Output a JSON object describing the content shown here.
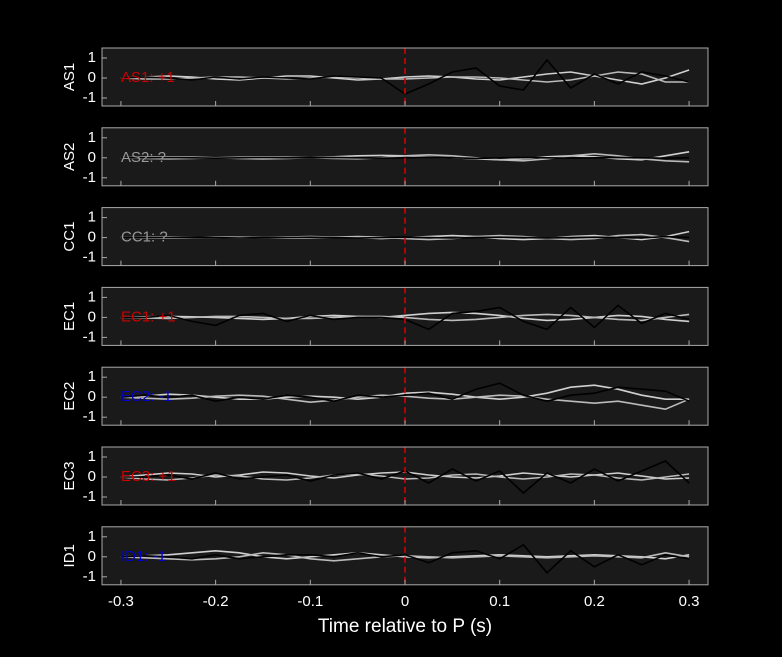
{
  "chart_data": [
    {
      "type": "line",
      "ylabel": "AS1",
      "annotation": "AS1: +1",
      "annotation_color": "#cc0000",
      "vline_x": 0,
      "vline_color": "#dd0000",
      "x": [
        -0.3,
        -0.275,
        -0.25,
        -0.225,
        -0.2,
        -0.175,
        -0.15,
        -0.125,
        -0.1,
        -0.075,
        -0.05,
        -0.025,
        0,
        0.025,
        0.05,
        0.075,
        0.1,
        0.125,
        0.15,
        0.175,
        0.2,
        0.225,
        0.25,
        0.275,
        0.3
      ],
      "series": [
        {
          "color": "#d0d0d0",
          "values": [
            0,
            0.05,
            0.1,
            0.05,
            -0.05,
            -0.1,
            0,
            0.1,
            0.1,
            0,
            -0.1,
            -0.05,
            0.05,
            0.1,
            0.05,
            -0.05,
            -0.1,
            0.05,
            0.2,
            0.3,
            0.1,
            -0.1,
            -0.3,
            0,
            0.4
          ]
        },
        {
          "color": "#bbbbbb",
          "values": [
            0,
            -0.05,
            -0.05,
            0,
            0.05,
            0.05,
            0,
            -0.05,
            0,
            0.05,
            0,
            -0.05,
            -0.05,
            0,
            0.05,
            0.05,
            0,
            -0.1,
            -0.2,
            -0.1,
            0.1,
            0.3,
            0.2,
            -0.2,
            -0.2
          ]
        },
        {
          "color": "#000000",
          "values": [
            0,
            0.05,
            0,
            -0.1,
            0.05,
            -0.05,
            0.05,
            0,
            -0.05,
            0.1,
            0.05,
            0,
            -0.8,
            -0.3,
            0.3,
            0.5,
            -0.4,
            -0.6,
            0.9,
            -0.5,
            0.2,
            -0.3,
            0.3,
            0.1,
            -0.2
          ]
        }
      ],
      "ylim": [
        -1.4,
        1.5
      ],
      "yticks": [
        -1,
        0,
        1
      ],
      "xlim": [
        -0.32,
        0.32
      ],
      "xticks": [
        -0.3,
        -0.2,
        -0.1,
        0,
        0.1,
        0.2,
        0.3
      ],
      "show_xtick_labels": false
    },
    {
      "type": "line",
      "ylabel": "AS2",
      "annotation": "AS2: ?",
      "annotation_color": "#999999",
      "vline_x": 0,
      "vline_color": "#dd0000",
      "x": [
        -0.3,
        -0.275,
        -0.25,
        -0.225,
        -0.2,
        -0.175,
        -0.15,
        -0.125,
        -0.1,
        -0.075,
        -0.05,
        -0.025,
        0,
        0.025,
        0.05,
        0.075,
        0.1,
        0.125,
        0.15,
        0.175,
        0.2,
        0.225,
        0.25,
        0.275,
        0.3
      ],
      "series": [
        {
          "color": "#d0d0d0",
          "values": [
            0,
            0.03,
            0.05,
            0.03,
            0,
            -0.03,
            -0.05,
            -0.03,
            0,
            0.05,
            0.1,
            0.12,
            0.1,
            0.05,
            0,
            -0.05,
            -0.1,
            -0.05,
            0.05,
            0.1,
            0.05,
            -0.05,
            -0.1,
            0.1,
            0.3
          ]
        },
        {
          "color": "#bbbbbb",
          "values": [
            0,
            -0.03,
            -0.05,
            -0.03,
            0,
            0.03,
            0.05,
            0.03,
            0,
            -0.03,
            -0.05,
            0,
            0.1,
            0.15,
            0.1,
            0,
            -0.1,
            -0.15,
            -0.05,
            0.1,
            0.2,
            0.1,
            -0.05,
            -0.15,
            -0.2
          ]
        },
        {
          "color": "#000000",
          "values": [
            0,
            0,
            0.02,
            0,
            -0.02,
            0,
            0.02,
            0,
            0,
            0.02,
            0,
            -0.02,
            0,
            0.03,
            0,
            -0.03,
            0,
            0.02,
            0,
            -0.02,
            0,
            0.02,
            0,
            -0.02,
            0
          ]
        }
      ],
      "ylim": [
        -1.4,
        1.5
      ],
      "yticks": [
        -1,
        0,
        1
      ],
      "xlim": [
        -0.32,
        0.32
      ],
      "xticks": [
        -0.3,
        -0.2,
        -0.1,
        0,
        0.1,
        0.2,
        0.3
      ],
      "show_xtick_labels": false
    },
    {
      "type": "line",
      "ylabel": "CC1",
      "annotation": "CC1: ?",
      "annotation_color": "#999999",
      "vline_x": 0,
      "vline_color": "#dd0000",
      "x": [
        -0.3,
        -0.275,
        -0.25,
        -0.225,
        -0.2,
        -0.175,
        -0.15,
        -0.125,
        -0.1,
        -0.075,
        -0.05,
        -0.025,
        0,
        0.025,
        0.05,
        0.075,
        0.1,
        0.125,
        0.15,
        0.175,
        0.2,
        0.225,
        0.25,
        0.275,
        0.3
      ],
      "series": [
        {
          "color": "#d0d0d0",
          "values": [
            0,
            0.02,
            0.03,
            0.02,
            0,
            -0.02,
            0,
            0.03,
            0.05,
            0.03,
            0,
            -0.05,
            0,
            0.05,
            0.1,
            0.05,
            -0.05,
            -0.1,
            -0.05,
            0.05,
            0.1,
            0,
            -0.1,
            0.05,
            0.3
          ]
        },
        {
          "color": "#bbbbbb",
          "values": [
            0,
            -0.02,
            -0.03,
            0,
            0.03,
            0.02,
            0,
            -0.03,
            -0.02,
            0.02,
            0.05,
            0.02,
            -0.05,
            -0.1,
            -0.05,
            0.05,
            0.1,
            0.05,
            -0.05,
            -0.1,
            -0.05,
            0.1,
            0.15,
            0,
            -0.2
          ]
        },
        {
          "color": "#000000",
          "values": [
            0,
            0,
            0,
            0.02,
            0,
            -0.02,
            0,
            0,
            0.02,
            0,
            -0.02,
            0,
            0.02,
            0,
            -0.02,
            0,
            0.02,
            0,
            -0.02,
            0,
            0.02,
            0,
            -0.02,
            0.05,
            0
          ]
        }
      ],
      "ylim": [
        -1.4,
        1.5
      ],
      "yticks": [
        -1,
        0,
        1
      ],
      "xlim": [
        -0.32,
        0.32
      ],
      "xticks": [
        -0.3,
        -0.2,
        -0.1,
        0,
        0.1,
        0.2,
        0.3
      ],
      "show_xtick_labels": false
    },
    {
      "type": "line",
      "ylabel": "EC1",
      "annotation": "EC1: +1",
      "annotation_color": "#cc0000",
      "vline_x": 0,
      "vline_color": "#dd0000",
      "x": [
        -0.3,
        -0.275,
        -0.25,
        -0.225,
        -0.2,
        -0.175,
        -0.15,
        -0.125,
        -0.1,
        -0.075,
        -0.05,
        -0.025,
        0,
        0.025,
        0.05,
        0.075,
        0.1,
        0.125,
        0.15,
        0.175,
        0.2,
        0.225,
        0.25,
        0.275,
        0.3
      ],
      "series": [
        {
          "color": "#d0d0d0",
          "values": [
            0,
            0.03,
            0.05,
            0.03,
            0,
            -0.05,
            -0.1,
            -0.05,
            0.05,
            0.1,
            0.05,
            0,
            0.1,
            0.2,
            0.25,
            0.2,
            0.1,
            -0.05,
            -0.15,
            -0.1,
            0,
            0.1,
            0.05,
            -0.1,
            -0.2
          ]
        },
        {
          "color": "#bbbbbb",
          "values": [
            0,
            -0.03,
            -0.05,
            0,
            0.05,
            0.05,
            0,
            -0.05,
            -0.05,
            0,
            0.05,
            0.05,
            0,
            -0.1,
            -0.15,
            -0.1,
            0,
            0.1,
            0.15,
            0.1,
            0,
            -0.1,
            -0.15,
            0,
            0.15
          ]
        },
        {
          "color": "#000000",
          "values": [
            0,
            0,
            0.1,
            -0.2,
            -0.4,
            0.1,
            0.2,
            -0.2,
            0.1,
            -0.1,
            0,
            0,
            -0.1,
            -0.6,
            0.2,
            0.3,
            0.5,
            -0.2,
            -0.6,
            0.5,
            -0.5,
            0.6,
            -0.3,
            0.2,
            -0.1
          ]
        }
      ],
      "ylim": [
        -1.4,
        1.5
      ],
      "yticks": [
        -1,
        0,
        1
      ],
      "xlim": [
        -0.32,
        0.32
      ],
      "xticks": [
        -0.3,
        -0.2,
        -0.1,
        0,
        0.1,
        0.2,
        0.3
      ],
      "show_xtick_labels": false
    },
    {
      "type": "line",
      "ylabel": "EC2",
      "annotation": "EC2: -1",
      "annotation_color": "#0000cc",
      "vline_x": 0,
      "vline_color": "#dd0000",
      "x": [
        -0.3,
        -0.275,
        -0.25,
        -0.225,
        -0.2,
        -0.175,
        -0.15,
        -0.125,
        -0.1,
        -0.075,
        -0.05,
        -0.025,
        0,
        0.025,
        0.05,
        0.075,
        0.1,
        0.125,
        0.15,
        0.175,
        0.2,
        0.225,
        0.25,
        0.275,
        0.3
      ],
      "series": [
        {
          "color": "#d0d0d0",
          "values": [
            0,
            0.05,
            0.15,
            0.1,
            0,
            -0.1,
            -0.1,
            0,
            0.05,
            0,
            -0.1,
            0,
            0.2,
            0.25,
            0.15,
            0,
            -0.1,
            0,
            0.2,
            0.5,
            0.6,
            0.4,
            0.1,
            -0.1,
            -0.1
          ]
        },
        {
          "color": "#bbbbbb",
          "values": [
            0,
            -0.05,
            -0.1,
            -0.05,
            0.05,
            0.1,
            0.05,
            -0.1,
            -0.25,
            -0.15,
            0,
            0.1,
            0.05,
            -0.05,
            -0.1,
            0,
            0.1,
            0.05,
            -0.1,
            -0.2,
            -0.3,
            -0.2,
            -0.4,
            -0.6,
            -0.1
          ]
        },
        {
          "color": "#000000",
          "values": [
            0,
            0.1,
            0,
            0.1,
            -0.2,
            0,
            -0.1,
            0.1,
            0,
            -0.2,
            0.1,
            0,
            0.1,
            0.2,
            -0.1,
            0.4,
            0.7,
            0.1,
            -0.2,
            0.1,
            0.2,
            0.5,
            0.4,
            0.3,
            -0.2
          ]
        }
      ],
      "ylim": [
        -1.4,
        1.5
      ],
      "yticks": [
        -1,
        0,
        1
      ],
      "xlim": [
        -0.32,
        0.32
      ],
      "xticks": [
        -0.3,
        -0.2,
        -0.1,
        0,
        0.1,
        0.2,
        0.3
      ],
      "show_xtick_labels": false
    },
    {
      "type": "line",
      "ylabel": "EC3",
      "annotation": "EC3: +1",
      "annotation_color": "#cc0000",
      "vline_x": 0,
      "vline_color": "#dd0000",
      "x": [
        -0.3,
        -0.275,
        -0.25,
        -0.225,
        -0.2,
        -0.175,
        -0.15,
        -0.125,
        -0.1,
        -0.075,
        -0.05,
        -0.025,
        0,
        0.025,
        0.05,
        0.075,
        0.1,
        0.125,
        0.15,
        0.175,
        0.2,
        0.225,
        0.25,
        0.275,
        0.3
      ],
      "series": [
        {
          "color": "#d0d0d0",
          "values": [
            0,
            0.1,
            0.2,
            0.15,
            0,
            0.1,
            0.25,
            0.2,
            0.05,
            -0.05,
            0.1,
            0.2,
            0.25,
            0.1,
            0,
            -0.05,
            0.05,
            0.2,
            0.1,
            0,
            0.1,
            0.2,
            0.05,
            -0.1,
            -0.05
          ]
        },
        {
          "color": "#bbbbbb",
          "values": [
            0,
            -0.1,
            -0.15,
            -0.05,
            0.1,
            0.05,
            -0.1,
            -0.15,
            -0.05,
            0.1,
            0.15,
            0.05,
            -0.1,
            -0.05,
            0.1,
            0.15,
            0,
            -0.1,
            0,
            0.15,
            0.1,
            -0.05,
            -0.15,
            0,
            0.15
          ]
        },
        {
          "color": "#000000",
          "values": [
            0,
            0,
            0.1,
            -0.1,
            0.2,
            -0.1,
            0,
            0.1,
            -0.2,
            0.1,
            0.2,
            -0.1,
            0.3,
            -0.3,
            0.4,
            -0.2,
            0.3,
            -0.8,
            0.2,
            -0.3,
            0.4,
            -0.2,
            0.3,
            0.8,
            -0.3
          ]
        }
      ],
      "ylim": [
        -1.4,
        1.5
      ],
      "yticks": [
        -1,
        0,
        1
      ],
      "xlim": [
        -0.32,
        0.32
      ],
      "xticks": [
        -0.3,
        -0.2,
        -0.1,
        0,
        0.1,
        0.2,
        0.3
      ],
      "show_xtick_labels": false
    },
    {
      "type": "line",
      "ylabel": "ID1",
      "annotation": "ID1: -1",
      "annotation_color": "#0000cc",
      "vline_x": 0,
      "vline_color": "#dd0000",
      "x": [
        -0.3,
        -0.275,
        -0.25,
        -0.225,
        -0.2,
        -0.175,
        -0.15,
        -0.125,
        -0.1,
        -0.075,
        -0.05,
        -0.025,
        0,
        0.025,
        0.05,
        0.075,
        0.1,
        0.125,
        0.15,
        0.175,
        0.2,
        0.225,
        0.25,
        0.275,
        0.3
      ],
      "series": [
        {
          "color": "#d0d0d0",
          "values": [
            0,
            0.05,
            0.1,
            0.2,
            0.3,
            0.2,
            0,
            -0.1,
            0,
            0.1,
            0.2,
            0.1,
            0,
            -0.05,
            0,
            0.05,
            0.1,
            0.05,
            0,
            0.05,
            0.1,
            0.05,
            0,
            -0.1,
            0.1
          ]
        },
        {
          "color": "#bbbbbb",
          "values": [
            0,
            -0.05,
            -0.1,
            -0.15,
            -0.1,
            0,
            0.2,
            0.1,
            -0.1,
            -0.2,
            -0.1,
            0,
            0.05,
            0,
            -0.05,
            0,
            0.05,
            0,
            -0.05,
            0,
            0.05,
            0,
            -0.05,
            0.2,
            0
          ]
        },
        {
          "color": "#000000",
          "values": [
            0,
            0.05,
            0,
            -0.1,
            0.1,
            -0.1,
            0,
            0.1,
            0.1,
            0,
            0.2,
            0,
            0.1,
            -0.3,
            0.2,
            0.3,
            -0.1,
            0.6,
            -0.8,
            0.3,
            -0.5,
            0.1,
            -0.4,
            0.1,
            -0.1
          ]
        }
      ],
      "ylim": [
        -1.4,
        1.5
      ],
      "yticks": [
        -1,
        0,
        1
      ],
      "xlim": [
        -0.32,
        0.32
      ],
      "xticks": [
        -0.3,
        -0.2,
        -0.1,
        0,
        0.1,
        0.2,
        0.3
      ],
      "show_xtick_labels": true,
      "xlabel": "Time relative to P (s)"
    }
  ]
}
